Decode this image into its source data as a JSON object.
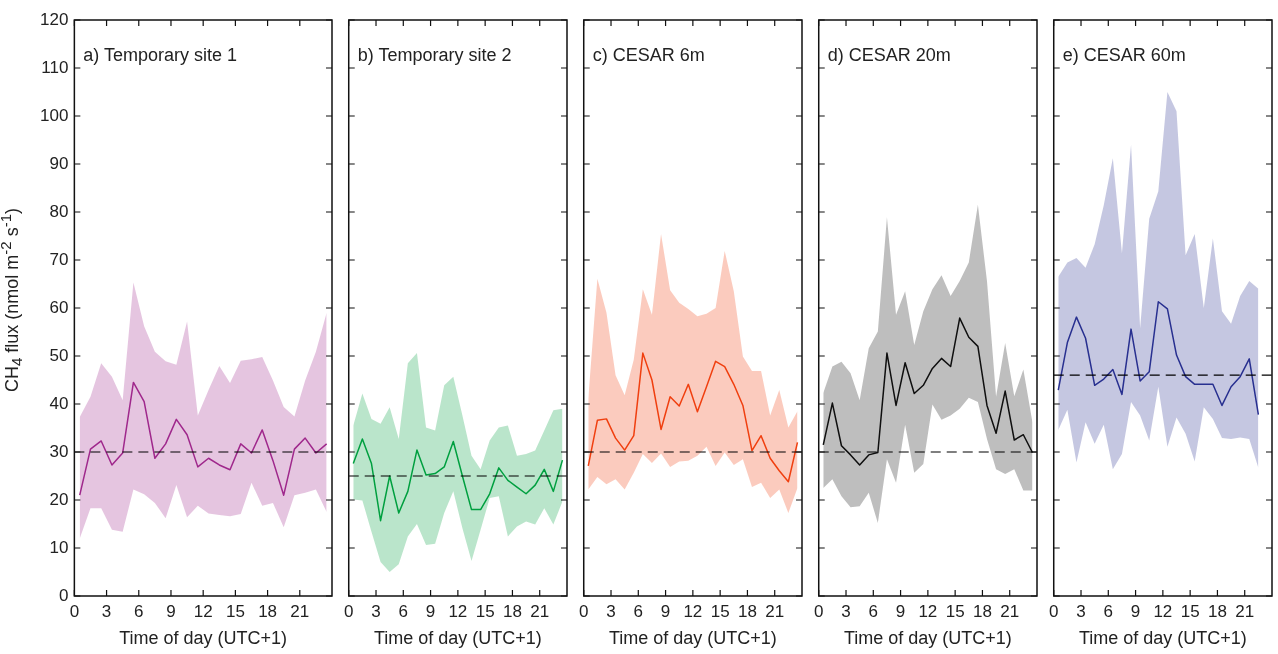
{
  "chart_data": [
    {
      "type": "line",
      "title": "a) Temporary site 1",
      "xlabel": "Time of day (UTC+1)",
      "ylabel": "CH$_{4}$ flux (nmol m$^{-2}$ s$^{-1}$)",
      "x": [
        0.5,
        1.5,
        2.5,
        3.5,
        4.5,
        5.5,
        6.5,
        7.5,
        8.5,
        9.5,
        10.5,
        11.5,
        12.5,
        13.5,
        14.5,
        15.5,
        16.5,
        17.5,
        18.5,
        19.5,
        20.5,
        21.5,
        22.5,
        23.5
      ],
      "xlim": [
        0,
        24
      ],
      "xticks": [
        0,
        3,
        6,
        9,
        12,
        15,
        18,
        21
      ],
      "ylim": [
        0,
        120
      ],
      "yticks": [
        0,
        10,
        20,
        30,
        40,
        50,
        60,
        70,
        80,
        90,
        100,
        110,
        120
      ],
      "ref_lines": [
        {
          "axis": "y",
          "value": 30,
          "color": "#000000",
          "line_style": "dashed"
        }
      ],
      "series": [
        {
          "color": "#a0288c",
          "values": [
            21.0,
            30.6,
            32.3,
            27.3,
            29.8,
            44.5,
            40.5,
            28.7,
            31.7,
            36.8,
            33.6,
            26.9,
            28.7,
            27.3,
            26.3,
            31.7,
            29.8,
            34.6,
            28.2,
            21.0,
            30.6,
            32.9,
            29.8,
            31.7
          ],
          "lower": [
            12.0,
            18.3,
            18.3,
            13.8,
            13.4,
            22.2,
            21.2,
            19.4,
            16.2,
            23.1,
            16.4,
            18.8,
            17.2,
            16.9,
            16.6,
            17.1,
            23.6,
            18.8,
            19.4,
            14.3,
            21.0,
            21.5,
            22.2,
            17.5
          ],
          "upper": [
            37.3,
            41.5,
            48.5,
            45.7,
            40.8,
            65.3,
            56.2,
            50.9,
            48.9,
            48.2,
            57.2,
            37.6,
            42.9,
            47.9,
            44.4,
            49.0,
            49.3,
            49.8,
            44.9,
            39.4,
            37.4,
            44.9,
            50.9,
            59.0
          ]
        }
      ]
    },
    {
      "type": "line",
      "title": "b) Temporary site 2",
      "xlabel": "Time of day (UTC+1)",
      "tick_labels": "x",
      "x": [
        0.5,
        1.5,
        2.5,
        3.5,
        4.5,
        5.5,
        6.5,
        7.5,
        8.5,
        9.5,
        10.5,
        11.5,
        12.5,
        13.5,
        14.5,
        15.5,
        16.5,
        17.5,
        18.5,
        19.5,
        20.5,
        21.5,
        22.5,
        23.5
      ],
      "xlim": [
        0,
        24
      ],
      "xticks": [
        0,
        3,
        6,
        9,
        12,
        15,
        18,
        21
      ],
      "ylim": [
        0,
        120
      ],
      "yticks": [
        0,
        10,
        20,
        30,
        40,
        50,
        60,
        70,
        80,
        90,
        100,
        110,
        120
      ],
      "ref_lines": [
        {
          "axis": "y",
          "value": 25,
          "color": "#000000",
          "line_style": "dashed"
        }
      ],
      "series": [
        {
          "color": "#00a040",
          "values": [
            27.6,
            32.7,
            27.6,
            15.7,
            25.0,
            17.3,
            21.8,
            30.4,
            25.2,
            25.5,
            26.9,
            32.2,
            25.0,
            18.0,
            18.0,
            21.3,
            26.7,
            24.1,
            22.7,
            21.3,
            23.1,
            26.4,
            21.8,
            28.3
          ],
          "lower": [
            20.1,
            19.9,
            13.4,
            7.1,
            5.0,
            6.6,
            12.4,
            15.0,
            10.6,
            10.9,
            17.3,
            21.8,
            14.1,
            7.3,
            13.8,
            20.4,
            20.8,
            12.4,
            14.5,
            15.5,
            14.9,
            18.3,
            14.9,
            19.7
          ],
          "upper": [
            35.5,
            42.2,
            36.9,
            35.9,
            39.3,
            32.7,
            48.5,
            50.6,
            35.1,
            34.5,
            43.9,
            45.7,
            37.6,
            29.2,
            26.4,
            32.4,
            35.1,
            35.5,
            29.2,
            29.6,
            30.3,
            34.5,
            38.7,
            39.0
          ]
        }
      ]
    },
    {
      "type": "line",
      "title": "c) CESAR 6m",
      "xlabel": "Time of day (UTC+1)",
      "tick_labels": "x",
      "x": [
        0.5,
        1.5,
        2.5,
        3.5,
        4.5,
        5.5,
        6.5,
        7.5,
        8.5,
        9.5,
        10.5,
        11.5,
        12.5,
        13.5,
        14.5,
        15.5,
        16.5,
        17.5,
        18.5,
        19.5,
        20.5,
        21.5,
        22.5,
        23.5
      ],
      "xlim": [
        0,
        24
      ],
      "xticks": [
        0,
        3,
        6,
        9,
        12,
        15,
        18,
        21
      ],
      "ylim": [
        0,
        120
      ],
      "yticks": [
        0,
        10,
        20,
        30,
        40,
        50,
        60,
        70,
        80,
        90,
        100,
        110,
        120
      ],
      "ref_lines": [
        {
          "axis": "y",
          "value": 30,
          "color": "#000000",
          "line_style": "dashed"
        }
      ],
      "series": [
        {
          "color": "#f04010",
          "values": [
            27.1,
            36.6,
            36.9,
            32.9,
            30.4,
            33.4,
            50.6,
            45.0,
            34.7,
            41.5,
            39.6,
            44.1,
            38.4,
            43.6,
            48.9,
            47.8,
            44.1,
            39.7,
            30.3,
            33.4,
            28.7,
            26.1,
            23.8,
            32.0
          ],
          "lower": [
            22.2,
            24.8,
            23.3,
            24.3,
            22.2,
            25.7,
            29.6,
            27.7,
            29.7,
            26.9,
            28.0,
            28.2,
            29.2,
            31.1,
            27.1,
            29.9,
            27.3,
            28.5,
            22.7,
            23.6,
            20.4,
            22.2,
            17.3,
            22.5
          ],
          "upper": [
            41.1,
            66.1,
            59.0,
            46.0,
            41.8,
            49.2,
            63.9,
            58.6,
            75.4,
            63.7,
            61.1,
            59.8,
            58.3,
            58.8,
            60.0,
            71.9,
            63.5,
            49.9,
            46.9,
            46.9,
            37.6,
            42.9,
            35.1,
            38.5
          ]
        }
      ]
    },
    {
      "type": "line",
      "title": "d) CESAR 20m",
      "xlabel": "Time of day (UTC+1)",
      "tick_labels": "x",
      "x": [
        0.5,
        1.5,
        2.5,
        3.5,
        4.5,
        5.5,
        6.5,
        7.5,
        8.5,
        9.5,
        10.5,
        11.5,
        12.5,
        13.5,
        14.5,
        15.5,
        16.5,
        17.5,
        18.5,
        19.5,
        20.5,
        21.5,
        22.5,
        23.5
      ],
      "xlim": [
        0,
        24
      ],
      "xticks": [
        0,
        3,
        6,
        9,
        12,
        15,
        18,
        21
      ],
      "ylim": [
        0,
        120
      ],
      "yticks": [
        0,
        10,
        20,
        30,
        40,
        50,
        60,
        70,
        80,
        90,
        100,
        110,
        120
      ],
      "ref_lines": [
        {
          "axis": "y",
          "value": 30,
          "color": "#000000",
          "line_style": "dashed"
        }
      ],
      "series": [
        {
          "color": "#101010",
          "values": [
            31.5,
            40.2,
            31.3,
            29.4,
            27.3,
            29.4,
            29.9,
            50.6,
            39.7,
            48.6,
            42.2,
            43.9,
            47.4,
            49.5,
            47.8,
            57.9,
            53.9,
            52.0,
            39.7,
            33.9,
            42.7,
            32.5,
            33.6,
            29.9
          ],
          "lower": [
            22.5,
            24.3,
            20.8,
            18.5,
            18.7,
            21.5,
            15.2,
            28.5,
            23.6,
            35.7,
            25.7,
            27.5,
            39.9,
            36.7,
            37.6,
            39.0,
            41.3,
            40.4,
            32.7,
            26.4,
            25.4,
            26.4,
            22.0,
            22.0
          ],
          "upper": [
            42.3,
            47.8,
            48.8,
            46.4,
            40.8,
            51.6,
            55.1,
            78.9,
            58.6,
            63.5,
            52.3,
            59.3,
            63.9,
            66.8,
            62.5,
            65.6,
            69.5,
            81.5,
            65.6,
            41.5,
            52.7,
            41.6,
            47.2,
            36.2
          ]
        }
      ]
    },
    {
      "type": "line",
      "title": "e) CESAR 60m",
      "xlabel": "Time of day (UTC+1)",
      "tick_labels": "x",
      "x": [
        0.5,
        1.5,
        2.5,
        3.5,
        4.5,
        5.5,
        6.5,
        7.5,
        8.5,
        9.5,
        10.5,
        11.5,
        12.5,
        13.5,
        14.5,
        15.5,
        16.5,
        17.5,
        18.5,
        19.5,
        20.5,
        21.5,
        22.5
      ],
      "xlim": [
        0,
        24
      ],
      "xticks": [
        0,
        3,
        6,
        9,
        12,
        15,
        18,
        21
      ],
      "ylim": [
        0,
        120
      ],
      "yticks": [
        0,
        10,
        20,
        30,
        40,
        50,
        60,
        70,
        80,
        90,
        100,
        110,
        120
      ],
      "ref_lines": [
        {
          "axis": "y",
          "value": 46,
          "color": "#000000",
          "line_style": "dashed"
        }
      ],
      "series": [
        {
          "color": "#283090",
          "values": [
            42.9,
            52.8,
            58.1,
            53.7,
            43.9,
            45.2,
            47.2,
            42.0,
            55.6,
            44.8,
            46.7,
            61.3,
            59.8,
            50.2,
            45.7,
            44.1,
            44.1,
            44.1,
            39.7,
            43.6,
            45.7,
            49.4,
            37.8
          ],
          "lower": [
            34.6,
            38.8,
            27.8,
            36.2,
            31.7,
            35.7,
            26.4,
            29.6,
            40.4,
            37.6,
            32.4,
            43.6,
            31.1,
            37.2,
            33.8,
            28.0,
            39.3,
            36.9,
            32.9,
            32.7,
            33.0,
            32.7,
            26.7
          ],
          "upper": [
            66.5,
            69.5,
            70.4,
            68.4,
            73.3,
            81.4,
            91.2,
            71.4,
            94.0,
            55.8,
            78.6,
            84.3,
            105.0,
            101.0,
            71.0,
            75.4,
            60.0,
            74.5,
            59.3,
            56.7,
            62.5,
            65.6,
            64.0
          ]
        }
      ]
    }
  ]
}
